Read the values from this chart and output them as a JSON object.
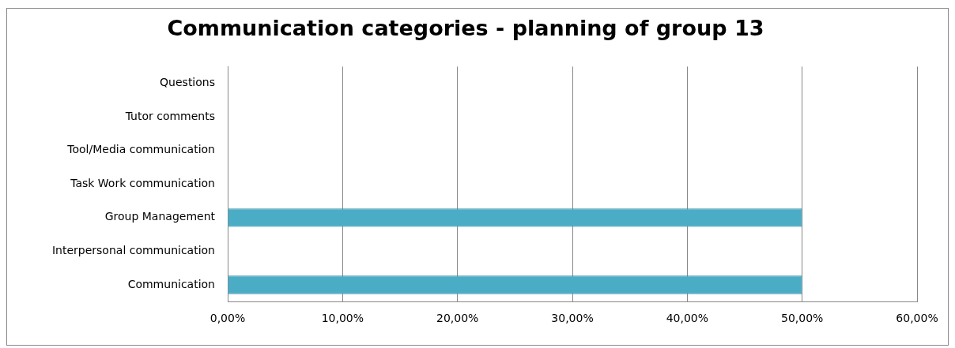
{
  "chart_data": {
    "type": "bar",
    "orientation": "horizontal",
    "title": "Communication categories - planning of group 13",
    "categories": [
      "Questions",
      "Tutor comments",
      "Tool/Media communication",
      "Task Work communication",
      "Group Management",
      "Interpersonal communication",
      "Communication"
    ],
    "values": [
      0,
      0,
      0,
      0,
      50,
      0,
      50
    ],
    "color": "#4bacc6",
    "xlim": [
      0,
      60
    ],
    "xticks": [
      {
        "value": 0,
        "label": "0,00%"
      },
      {
        "value": 10,
        "label": "10,00%"
      },
      {
        "value": 20,
        "label": "20,00%"
      },
      {
        "value": 30,
        "label": "30,00%"
      },
      {
        "value": 40,
        "label": "40,00%"
      },
      {
        "value": 50,
        "label": "50,00%"
      },
      {
        "value": 60,
        "label": "60,00%"
      }
    ],
    "grid": "x",
    "legend": false
  }
}
